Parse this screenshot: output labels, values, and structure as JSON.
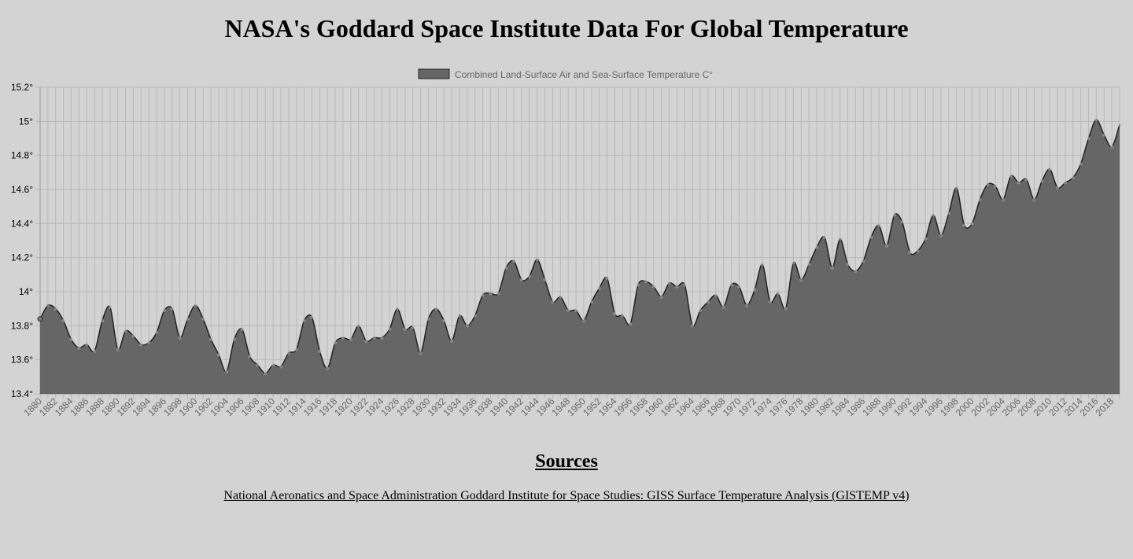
{
  "page": {
    "title": "NASA's Goddard Space Institute Data For Global Temperature",
    "sources_heading": "Sources",
    "source_link_text": "National Aeronatics and Space Administration Goddard Institute for Space Studies: GISS Surface Temperature Analysis (GISTEMP v4)"
  },
  "chart_data": {
    "type": "area",
    "title": "",
    "xlabel": "",
    "ylabel": "",
    "y_suffix": "°",
    "ylim": [
      13.4,
      15.2
    ],
    "yticks": [
      13.4,
      13.6,
      13.8,
      14.0,
      14.2,
      14.4,
      14.6,
      14.8,
      15.0,
      15.2
    ],
    "ytick_labels": [
      "13.4°",
      "13.6°",
      "13.8°",
      "14°",
      "14.2°",
      "14.4°",
      "14.6°",
      "14.8°",
      "15°",
      "15.2°"
    ],
    "x_tick_step": 2,
    "grid": true,
    "legend_position": "top",
    "colors": {
      "fill": "#666666",
      "line": "#222222",
      "grid": "#b8b8b8",
      "point": "#b5b5b5"
    },
    "series": [
      {
        "name": "Combined Land-Surface Air and Sea-Surface Temperature C°",
        "x": [
          1880,
          1881,
          1882,
          1883,
          1884,
          1885,
          1886,
          1887,
          1888,
          1889,
          1890,
          1891,
          1892,
          1893,
          1894,
          1895,
          1896,
          1897,
          1898,
          1899,
          1900,
          1901,
          1902,
          1903,
          1904,
          1905,
          1906,
          1907,
          1908,
          1909,
          1910,
          1911,
          1912,
          1913,
          1914,
          1915,
          1916,
          1917,
          1918,
          1919,
          1920,
          1921,
          1922,
          1923,
          1924,
          1925,
          1926,
          1927,
          1928,
          1929,
          1930,
          1931,
          1932,
          1933,
          1934,
          1935,
          1936,
          1937,
          1938,
          1939,
          1940,
          1941,
          1942,
          1943,
          1944,
          1945,
          1946,
          1947,
          1948,
          1949,
          1950,
          1951,
          1952,
          1953,
          1954,
          1955,
          1956,
          1957,
          1958,
          1959,
          1960,
          1961,
          1962,
          1963,
          1964,
          1965,
          1966,
          1967,
          1968,
          1969,
          1970,
          1971,
          1972,
          1973,
          1974,
          1975,
          1976,
          1977,
          1978,
          1979,
          1980,
          1981,
          1982,
          1983,
          1984,
          1985,
          1986,
          1987,
          1988,
          1989,
          1990,
          1991,
          1992,
          1993,
          1994,
          1995,
          1996,
          1997,
          1998,
          1999,
          2000,
          2001,
          2002,
          2003,
          2004,
          2005,
          2006,
          2007,
          2008,
          2009,
          2010,
          2011,
          2012,
          2013,
          2014,
          2015,
          2016,
          2017,
          2018,
          2019
        ],
        "values": [
          13.84,
          13.92,
          13.9,
          13.83,
          13.72,
          13.67,
          13.69,
          13.65,
          13.83,
          13.91,
          13.66,
          13.77,
          13.74,
          13.69,
          13.7,
          13.76,
          13.89,
          13.9,
          13.73,
          13.84,
          13.92,
          13.84,
          13.72,
          13.63,
          13.53,
          13.72,
          13.78,
          13.62,
          13.57,
          13.52,
          13.57,
          13.56,
          13.64,
          13.66,
          13.83,
          13.85,
          13.65,
          13.55,
          13.7,
          13.73,
          13.72,
          13.8,
          13.71,
          13.73,
          13.73,
          13.78,
          13.9,
          13.78,
          13.79,
          13.64,
          13.84,
          13.9,
          13.83,
          13.71,
          13.86,
          13.8,
          13.86,
          13.98,
          13.99,
          13.99,
          14.14,
          14.18,
          14.07,
          14.09,
          14.19,
          14.07,
          13.94,
          13.97,
          13.89,
          13.89,
          13.83,
          13.94,
          14.02,
          14.08,
          13.87,
          13.86,
          13.81,
          14.04,
          14.06,
          14.03,
          13.97,
          14.05,
          14.03,
          14.04,
          13.8,
          13.89,
          13.94,
          13.98,
          13.91,
          14.04,
          14.03,
          13.92,
          14.01,
          14.16,
          13.94,
          13.99,
          13.9,
          14.17,
          14.07,
          14.16,
          14.26,
          14.32,
          14.14,
          14.31,
          14.16,
          14.12,
          14.18,
          14.32,
          14.39,
          14.27,
          14.45,
          14.41,
          14.23,
          14.24,
          14.31,
          14.45,
          14.33,
          14.46,
          14.61,
          14.39,
          14.4,
          14.54,
          14.63,
          14.62,
          14.54,
          14.68,
          14.64,
          14.66,
          14.54,
          14.65,
          14.72,
          14.61,
          14.64,
          14.67,
          14.75,
          14.9,
          15.01,
          14.92,
          14.85,
          14.98
        ]
      }
    ]
  }
}
